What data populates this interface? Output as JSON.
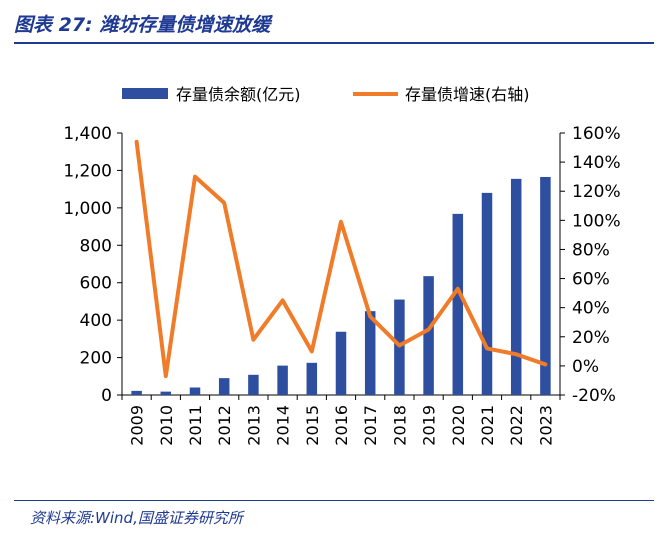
{
  "header": {
    "title": "图表 27: 潍坊存量债增速放缓"
  },
  "footer": {
    "source": "资料来源:Wind,国盛证券研究所"
  },
  "colors": {
    "bar": "#2e4fa0",
    "line": "#f07b28",
    "title": "#1f3a93"
  },
  "chart_data": {
    "type": "bar",
    "categories": [
      "2009",
      "2010",
      "2011",
      "2012",
      "2013",
      "2014",
      "2015",
      "2016",
      "2017",
      "2018",
      "2019",
      "2020",
      "2021",
      "2022",
      "2023"
    ],
    "series": [
      {
        "name": "存量债余额(亿元)",
        "type": "bar",
        "axis": "left",
        "values": [
          22,
          18,
          40,
          90,
          108,
          157,
          172,
          338,
          448,
          510,
          635,
          968,
          1080,
          1155,
          1165
        ]
      },
      {
        "name": "存量债增速(右轴)",
        "type": "line",
        "axis": "right",
        "values": [
          1.54,
          -0.07,
          1.3,
          1.12,
          0.18,
          0.45,
          0.1,
          0.99,
          0.34,
          0.14,
          0.25,
          0.53,
          0.12,
          0.08,
          0.01
        ]
      }
    ],
    "y_left": {
      "lim": [
        0,
        1400
      ],
      "ticks": [
        "0",
        "200",
        "400",
        "600",
        "800",
        "1,000",
        "1,200",
        "1,400"
      ]
    },
    "y_right": {
      "lim": [
        -0.2,
        1.6
      ],
      "ticks": [
        "-20%",
        "0%",
        "20%",
        "40%",
        "60%",
        "80%",
        "100%",
        "120%",
        "140%",
        "160%"
      ]
    },
    "legend": "top",
    "grid": false
  }
}
